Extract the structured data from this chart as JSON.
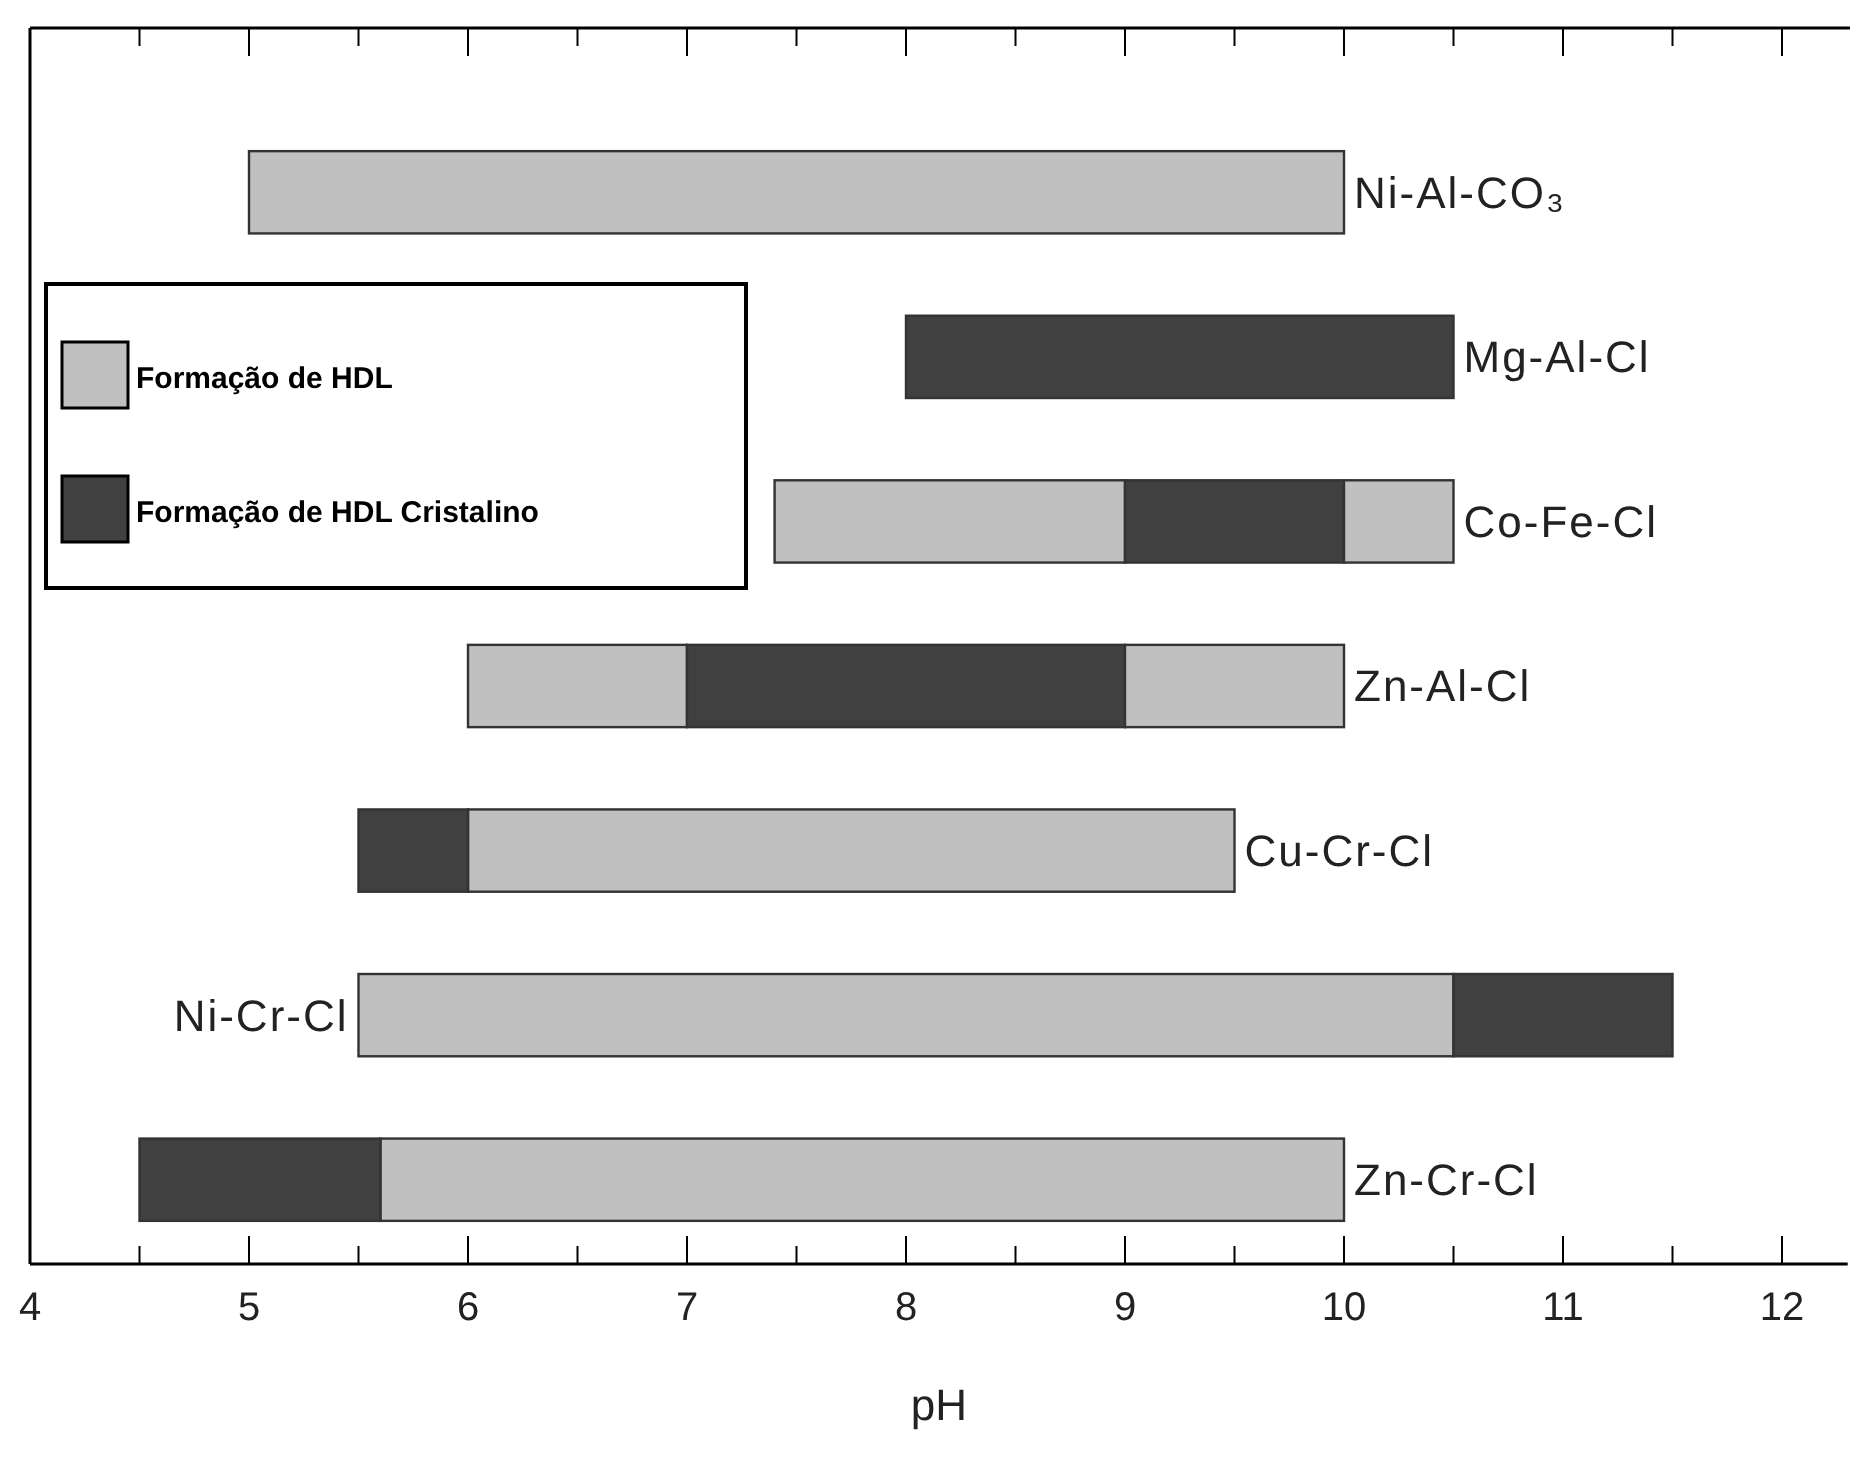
{
  "chart_data": {
    "type": "bar",
    "orientation": "horizontal",
    "xlabel": "pH",
    "categories": [
      "Ni-Al-CO₃",
      "Mg-Al-Cl",
      "Co-Fe-Cl",
      "Zn-Al-Cl",
      "Cu-Cr-Cl",
      "Ni-Cr-Cl",
      "Zn-Cr-Cl"
    ],
    "series": [
      {
        "name": "Formação de HDL",
        "color": "#c0c0c0",
        "base": [
          5,
          null,
          7.4,
          6,
          6,
          5.5,
          5.6
        ],
        "values": [
          5,
          null,
          1.6,
          1,
          3.5,
          5,
          4.4
        ]
      },
      {
        "name": "Formação de HDL Cristalino",
        "color": "#404040",
        "base": [
          null,
          8,
          9,
          7,
          5.5,
          10.5,
          4.5
        ],
        "values": [
          null,
          2.5,
          1,
          2,
          0.5,
          1,
          1.1
        ]
      },
      {
        "color": "#c0c0c0",
        "base": [
          null,
          null,
          10,
          9,
          null,
          null,
          null
        ],
        "values": [
          null,
          null,
          0.5,
          1,
          null,
          null,
          null
        ]
      }
    ],
    "xlim": [
      4,
      12.3
    ],
    "xticks": [
      4,
      {
        "value": 4.5,
        "label": null
      },
      5,
      {
        "value": 5.5,
        "label": null
      },
      6,
      {
        "value": 6.5,
        "label": null
      },
      7,
      {
        "value": 7.5,
        "label": null
      },
      8,
      {
        "value": 8.5,
        "label": null
      },
      9,
      {
        "value": 9.5,
        "label": null
      },
      10,
      {
        "value": 10.5,
        "label": null
      },
      11,
      {
        "value": 11.5,
        "label": null
      },
      12
    ],
    "legend": "top left",
    "grid": false
  }
}
